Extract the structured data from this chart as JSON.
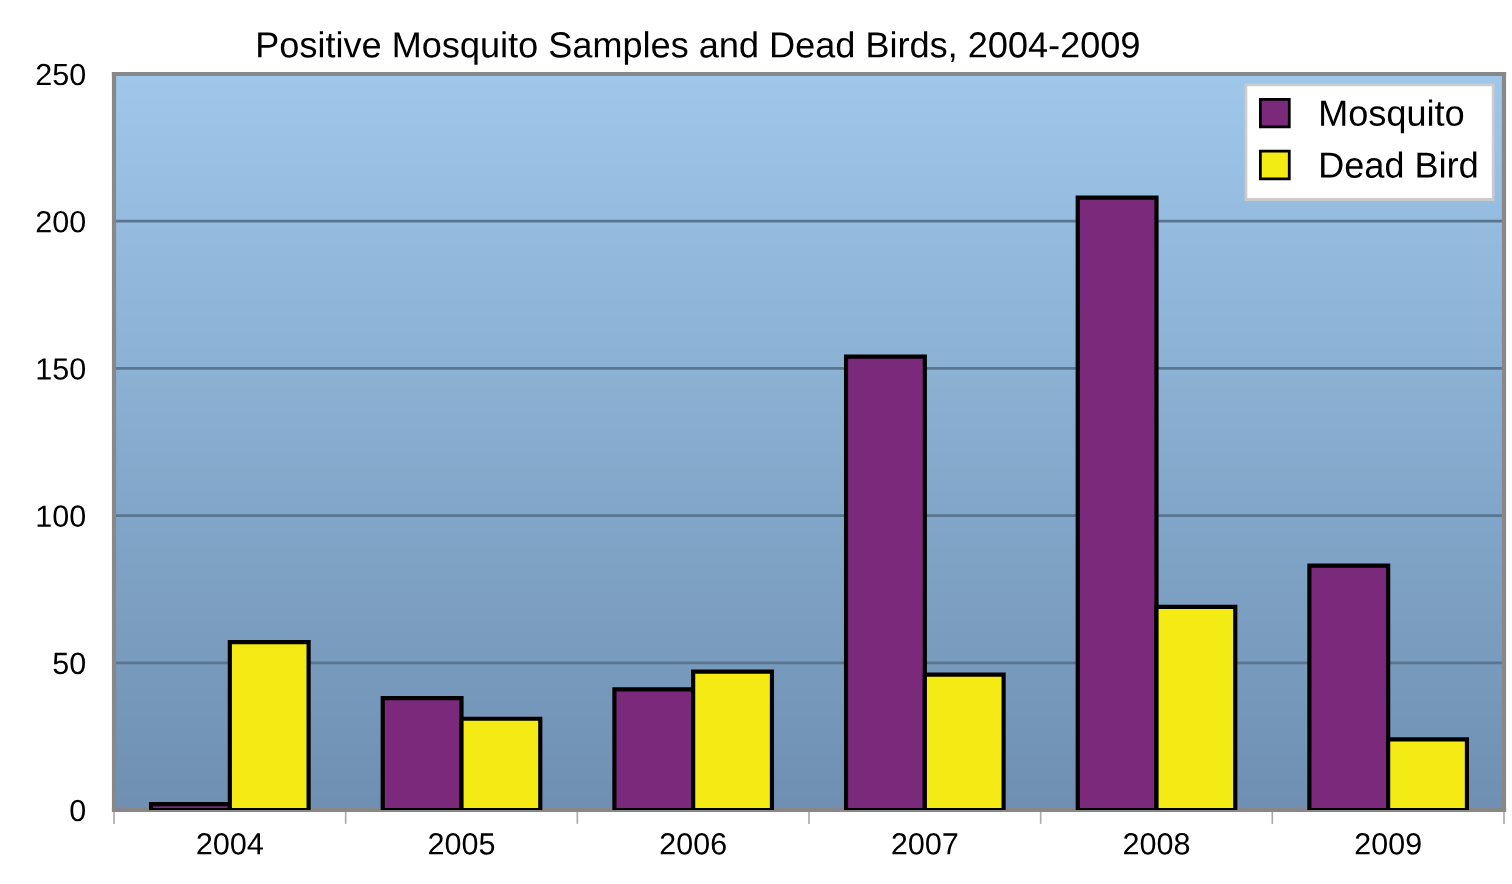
{
  "chart_data": {
    "type": "bar",
    "title": "Positive Mosquito Samples and Dead Birds, 2004-2009",
    "categories": [
      "2004",
      "2005",
      "2006",
      "2007",
      "2008",
      "2009"
    ],
    "series": [
      {
        "name": "Mosquito",
        "color": "#7b2a7b",
        "values": [
          2,
          38,
          41,
          154,
          208,
          83
        ]
      },
      {
        "name": "Dead Bird",
        "color": "#f5eb14",
        "values": [
          57,
          31,
          47,
          46,
          69,
          24
        ]
      }
    ],
    "ylim": [
      0,
      250
    ],
    "yticks": [
      0,
      50,
      100,
      150,
      200,
      250
    ],
    "grid": "y",
    "legend": "top right"
  }
}
